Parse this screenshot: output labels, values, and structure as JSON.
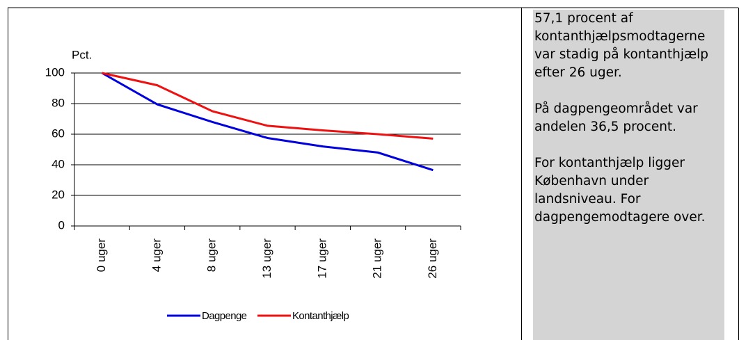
{
  "chart_data": {
    "type": "line",
    "y_label": "Pct.",
    "categories": [
      "0 uger",
      "4 uger",
      "8 uger",
      "13 uger",
      "17 uger",
      "21 uger",
      "26 uger"
    ],
    "series": [
      {
        "name": "Dagpenge",
        "color": "#0000dd",
        "values": [
          100,
          79.5,
          68,
          57.5,
          52,
          48,
          36.5
        ]
      },
      {
        "name": "Kontanthjælp",
        "color": "#ee1111",
        "values": [
          100,
          92,
          75,
          65.5,
          62.5,
          60,
          57.1
        ]
      }
    ],
    "ylim": [
      0,
      100
    ],
    "yticks": [
      0,
      20,
      40,
      60,
      80,
      100
    ],
    "grid": true,
    "legend": "bottom",
    "annotations": [
      "57,1 procent af kontanthjælpsmodtagerne var stadig på kontanthjælp efter 26 uger.",
      "På dagpengeområdet var andelen 36,5 procent.",
      "For kontanthjælp ligger København under landsniveau. For dagpengemodtagere over."
    ]
  }
}
